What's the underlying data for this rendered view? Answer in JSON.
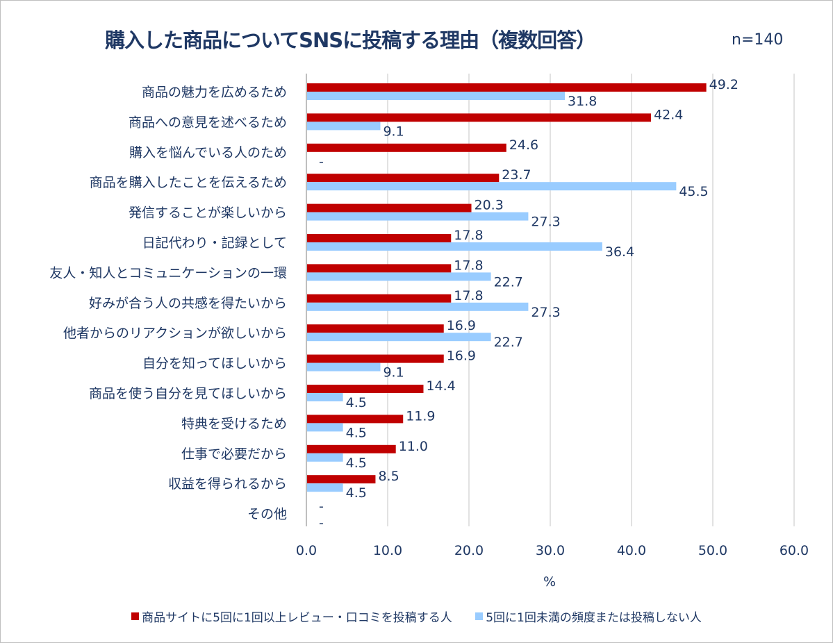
{
  "title": "購入した商品についてSNSに投稿する理由（複数回答）",
  "sample_size": "n=140",
  "chart_data": {
    "type": "bar",
    "orientation": "horizontal",
    "title": "購入した商品についてSNSに投稿する理由（複数回答）",
    "xlabel": "%",
    "xlim": [
      0,
      60
    ],
    "xticks": [
      "0.0",
      "10.0",
      "20.0",
      "30.0",
      "40.0",
      "50.0",
      "60.0"
    ],
    "grid": true,
    "legend_position": "bottom",
    "categories": [
      "商品の魅力を広めるため",
      "商品への意見を述べるため",
      "購入を悩んでいる人のため",
      "商品を購入したことを伝えるため",
      "発信することが楽しいから",
      "日記代わり・記録として",
      "友人・知人とコミュニケーションの一環",
      "好みが合う人の共感を得たいから",
      "他者からのリアクションが欲しいから",
      "自分を知ってほしいから",
      "商品を使う自分を見てほしいから",
      "特典を受けるため",
      "仕事で必要だから",
      "収益を得られるから",
      "その他"
    ],
    "series": [
      {
        "name": "商品サイトに5回に1回以上レビュー・口コミを投稿する人",
        "color": "#c00000",
        "values": [
          49.2,
          42.4,
          24.6,
          23.7,
          20.3,
          17.8,
          17.8,
          17.8,
          16.9,
          16.9,
          14.4,
          11.9,
          11.0,
          8.5,
          null
        ],
        "labels": [
          "49.2",
          "42.4",
          "24.6",
          "23.7",
          "20.3",
          "17.8",
          "17.8",
          "17.8",
          "16.9",
          "16.9",
          "14.4",
          "11.9",
          "11.0",
          "8.5",
          "-"
        ]
      },
      {
        "name": "5回に1回未満の頻度または投稿しない人",
        "color": "#99ccff",
        "values": [
          31.8,
          9.1,
          null,
          45.5,
          27.3,
          36.4,
          22.7,
          27.3,
          22.7,
          9.1,
          4.5,
          4.5,
          4.5,
          4.5,
          null
        ],
        "labels": [
          "31.8",
          "9.1",
          "-",
          "45.5",
          "27.3",
          "36.4",
          "22.7",
          "27.3",
          "22.7",
          "9.1",
          "4.5",
          "4.5",
          "4.5",
          "4.5",
          "-"
        ]
      }
    ]
  }
}
